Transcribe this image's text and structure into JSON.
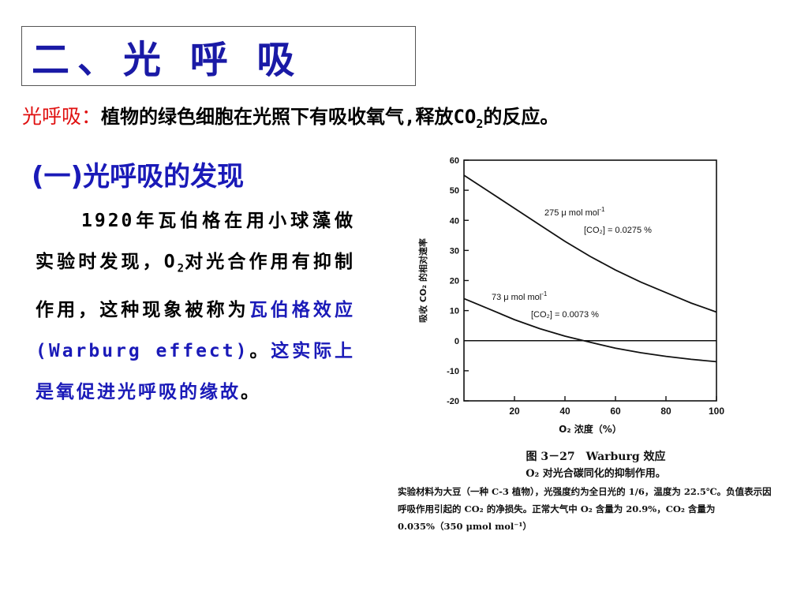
{
  "slide": {
    "title": "二、光 呼 吸",
    "definition_label": "光呼吸：",
    "definition_text": "植物的绿色细胞在光照下有吸收氧气,释放CO",
    "definition_sub": "2",
    "definition_end": "的反应。",
    "section_heading": "(一)光呼吸的发现",
    "para_part1": "1920年瓦伯格在用小球藻做实验时发现，O",
    "para_sub": "2",
    "para_part2": "对光合作用有抑制作用，这种现象被称为",
    "para_highlight1": "瓦伯格效应(Warburg effect)",
    "para_part3": "。",
    "para_highlight2": "这实际上是氧促进光呼吸的缘故",
    "para_end": "。"
  },
  "figure": {
    "caption_title": "图 3－27　Warburg 效应",
    "caption_sub": "O₂ 对光合碳同化的抑制作用。",
    "caption_note": "实验材料为大豆（一种 C-3 植物），光强度约为全日光的 1/6，温度为 22.5℃。负值表示因呼吸作用引起的 CO₂ 的净损失。正常大气中 O₂ 含量为 20.9%，CO₂ 含量为 0.035%（350 μmol mol⁻¹）"
  },
  "chart_data": {
    "type": "line",
    "title": "",
    "xlabel": "O₂ 浓度（%）",
    "ylabel": "吸收 CO₂ 的相对速率",
    "xlim": [
      0,
      100
    ],
    "ylim": [
      -20,
      60
    ],
    "xticks": [
      20,
      40,
      60,
      80,
      100
    ],
    "yticks": [
      60,
      50,
      40,
      30,
      20,
      10,
      0,
      -10,
      -20
    ],
    "series": [
      {
        "name": "275 μ mol mol⁻¹ [CO₂] = 0.0275 %",
        "x": [
          0,
          10,
          20,
          30,
          40,
          50,
          60,
          70,
          80,
          90,
          100
        ],
        "y": [
          55,
          49.5,
          44,
          38.5,
          33,
          28,
          23.5,
          19.5,
          16,
          12.5,
          9.5
        ]
      },
      {
        "name": "73 μ mol mol⁻¹ [CO₂] = 0.0073 %",
        "x": [
          0,
          10,
          20,
          30,
          40,
          50,
          60,
          70,
          80,
          90,
          100
        ],
        "y": [
          14,
          10.5,
          7,
          4,
          1.5,
          -0.5,
          -2.5,
          -4,
          -5.2,
          -6.2,
          -7
        ]
      }
    ],
    "annotations": [
      {
        "text": "275 μ mol mol",
        "sup": "-1",
        "line2": "[CO₂] = 0.0275 %"
      },
      {
        "text": "73 μ mol mol",
        "sup": "-1",
        "line2": "[CO₂] = 0.0073 %"
      }
    ],
    "reference_line_y": 0,
    "grid": false,
    "legend": "none"
  }
}
